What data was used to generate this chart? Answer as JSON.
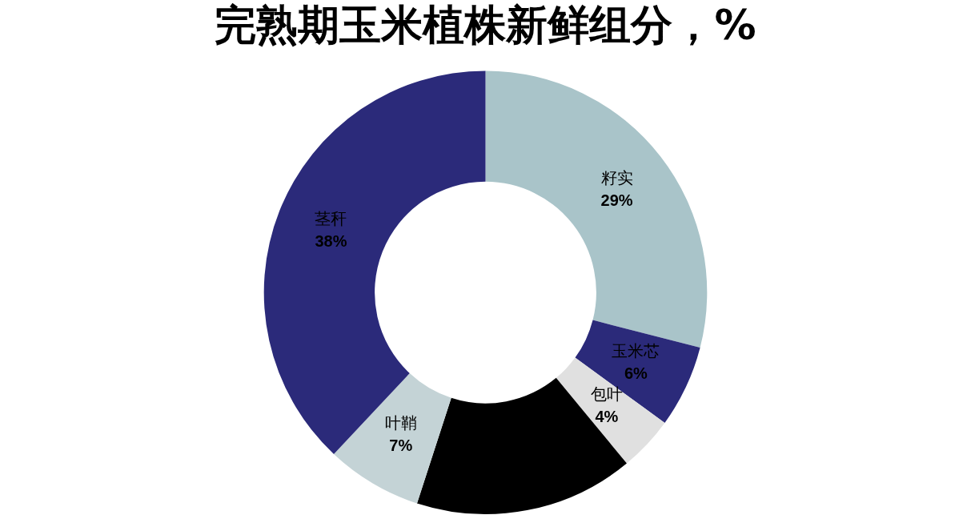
{
  "chart_data": {
    "type": "donut",
    "title": "完熟期玉米植株新鲜组分，%",
    "categories": [
      "籽实",
      "玉米芯",
      "包叶",
      null,
      "叶鞘",
      "茎秆"
    ],
    "values": [
      29,
      6,
      4,
      16,
      7,
      38
    ],
    "colors": [
      "#a9c4c9",
      "#2b2a7a",
      "#e0e0e0",
      "#000000",
      "#c4d3d6",
      "#2b2a7a"
    ],
    "value_labels": [
      "29%",
      "6%",
      "4%",
      null,
      "7%",
      "38%"
    ],
    "legend": false
  }
}
